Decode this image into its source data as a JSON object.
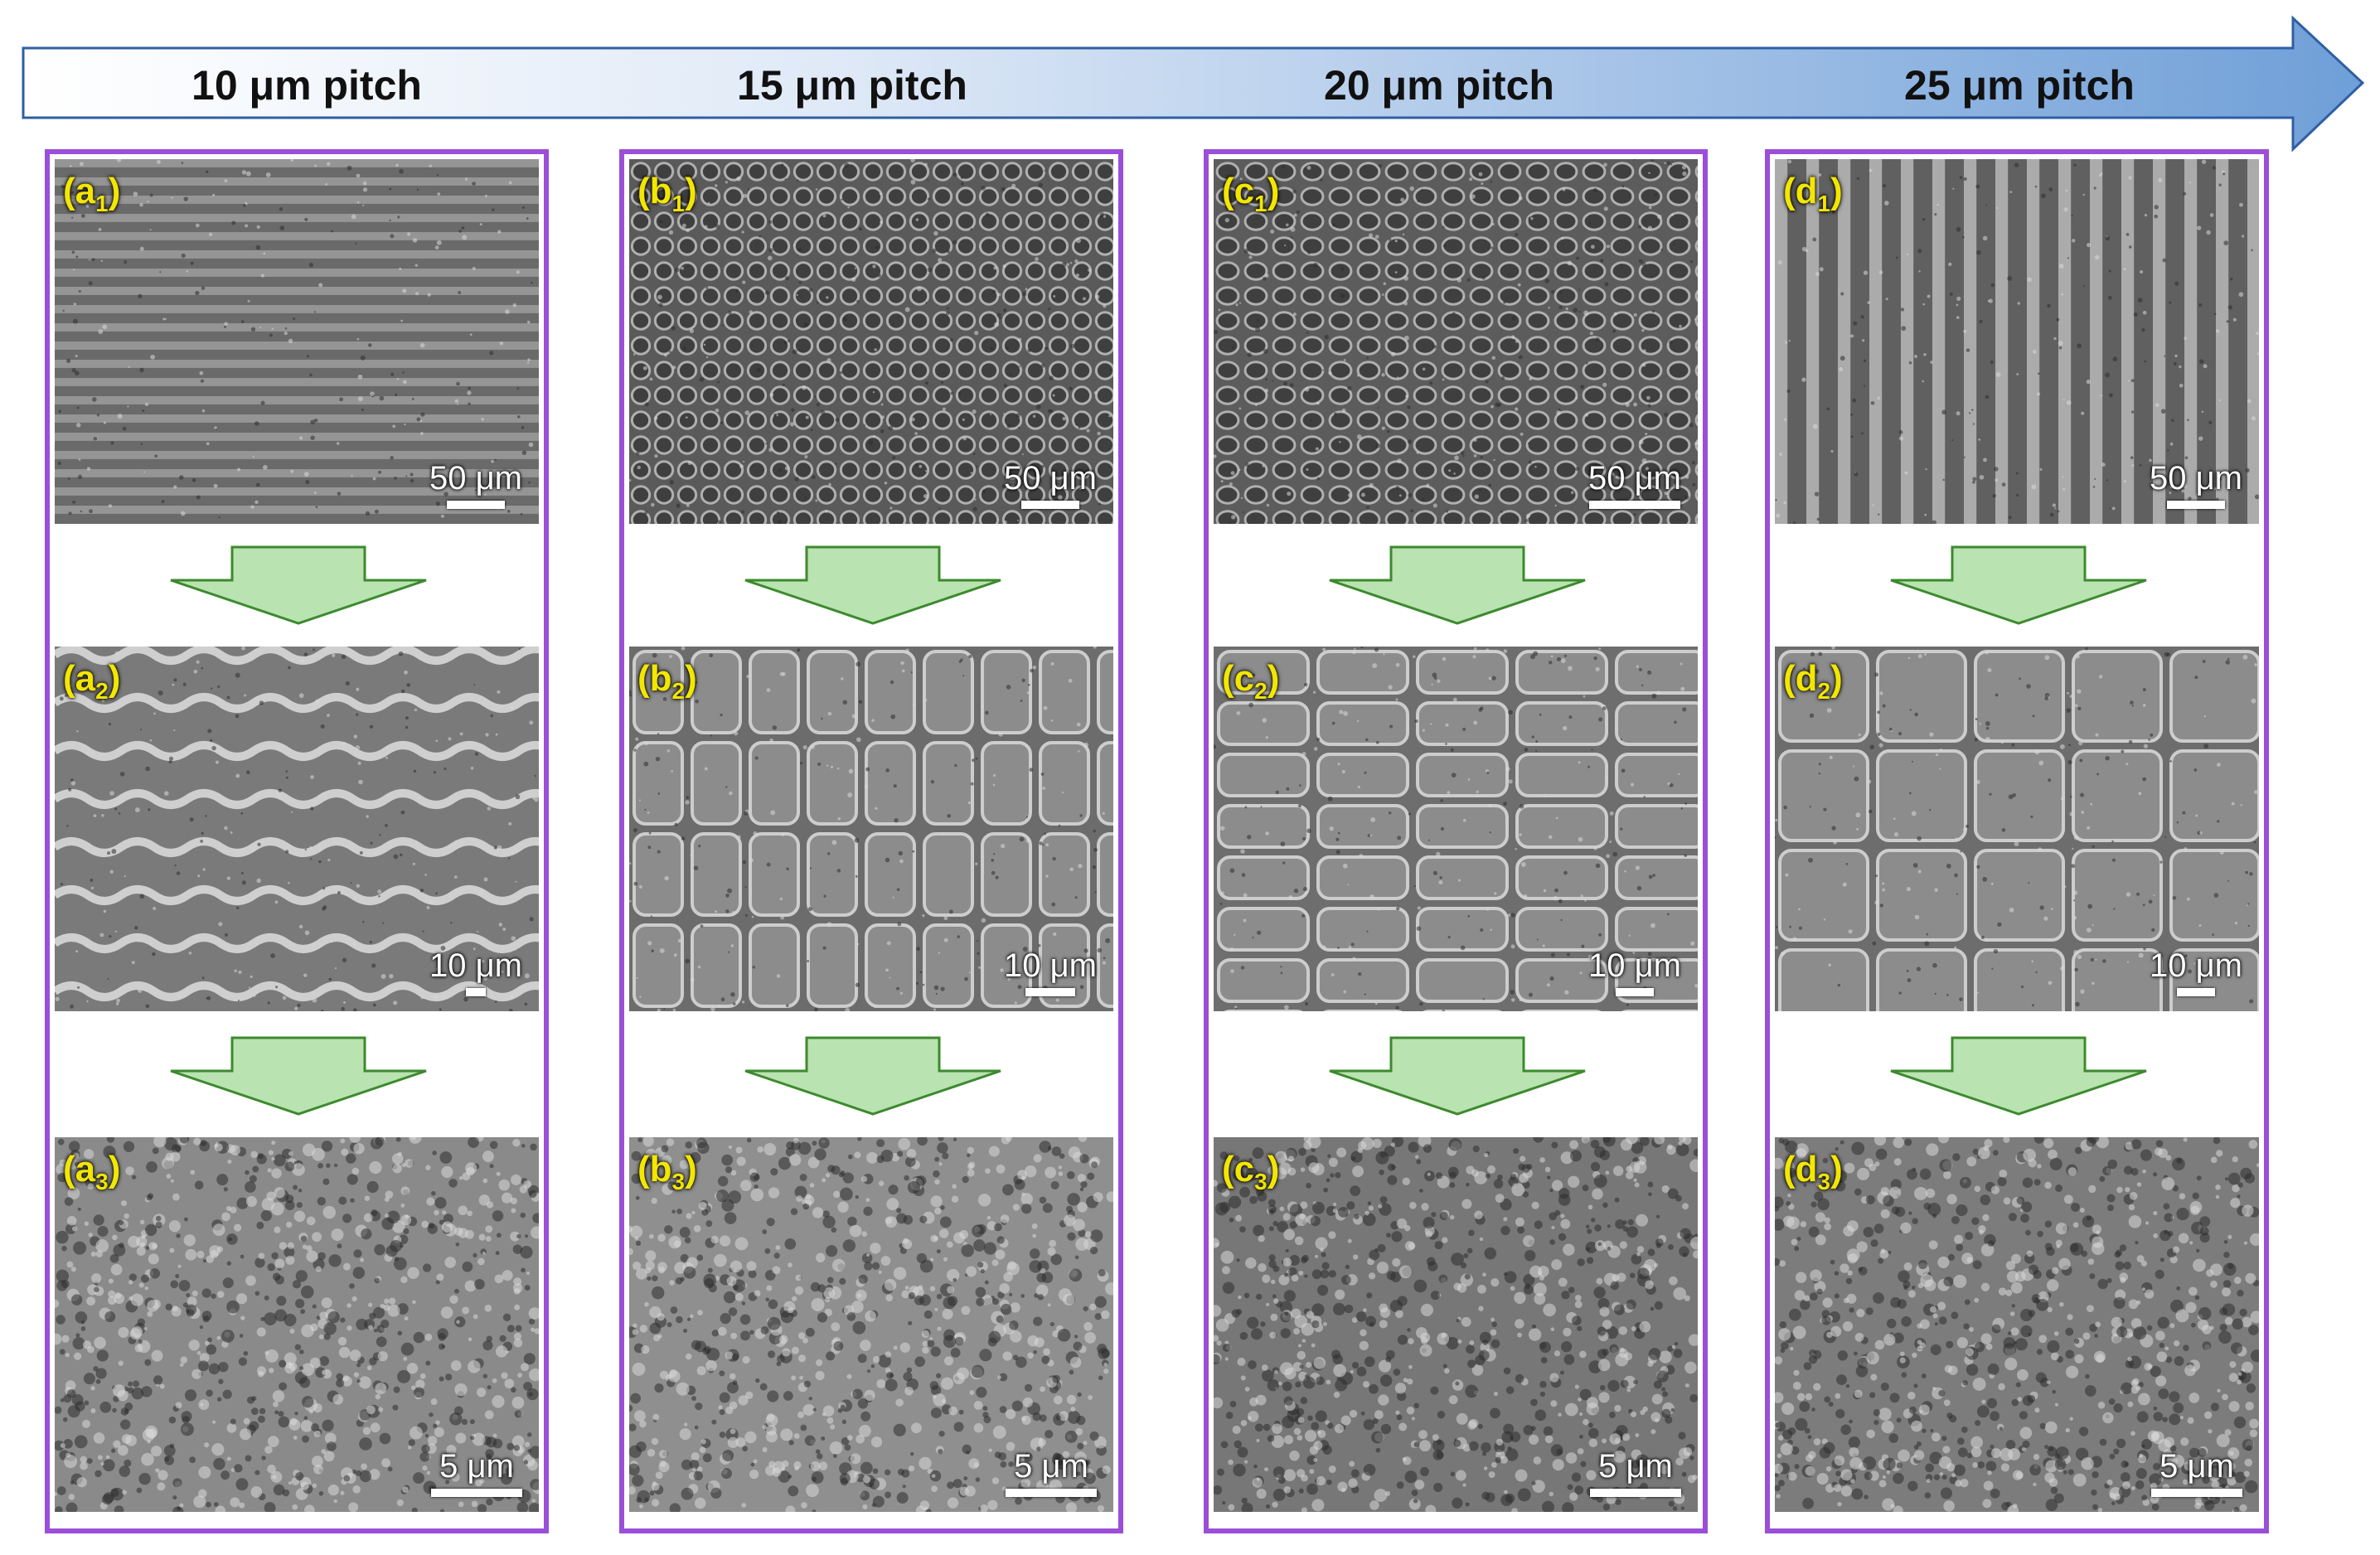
{
  "header": {
    "pitches": [
      "10 μm pitch",
      "15 μm pitch",
      "20 μm pitch",
      "25 μm pitch"
    ]
  },
  "columns": [
    {
      "key": "a",
      "panels": [
        {
          "letter": "a",
          "index": "1",
          "scale": "50 μm"
        },
        {
          "letter": "a",
          "index": "2",
          "scale": "10 μm"
        },
        {
          "letter": "a",
          "index": "3",
          "scale": "5 μm"
        }
      ]
    },
    {
      "key": "b",
      "panels": [
        {
          "letter": "b",
          "index": "1",
          "scale": "50 μm"
        },
        {
          "letter": "b",
          "index": "2",
          "scale": "10 μm"
        },
        {
          "letter": "b",
          "index": "3",
          "scale": "5 μm"
        }
      ]
    },
    {
      "key": "c",
      "panels": [
        {
          "letter": "c",
          "index": "1",
          "scale": "50 μm"
        },
        {
          "letter": "c",
          "index": "2",
          "scale": "10 μm"
        },
        {
          "letter": "c",
          "index": "3",
          "scale": "5 μm"
        }
      ]
    },
    {
      "key": "d",
      "panels": [
        {
          "letter": "d",
          "index": "1",
          "scale": "50 μm"
        },
        {
          "letter": "d",
          "index": "2",
          "scale": "10 μm"
        },
        {
          "letter": "d",
          "index": "3",
          "scale": "5 μm"
        }
      ]
    }
  ],
  "colors": {
    "frame": "#9b4fd8",
    "label": "#f3e600",
    "arrow_fill": "#b9e3b0",
    "arrow_stroke": "#3c8a2e",
    "header_start": "#ffffff",
    "header_end": "#6f9fd8"
  },
  "icons": {
    "header": "right-arrow-gradient",
    "between_panels": "down-arrow"
  }
}
